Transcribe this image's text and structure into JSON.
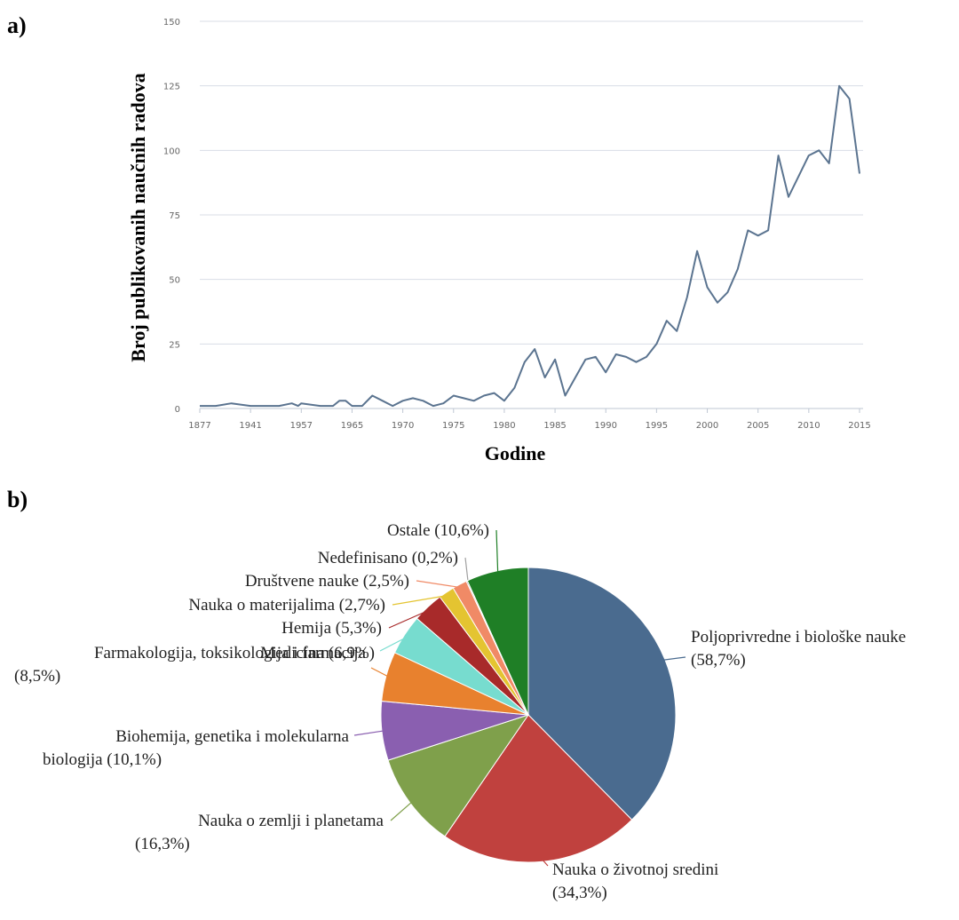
{
  "panel_a_label": "a)",
  "panel_b_label": "b)",
  "chart_data": [
    {
      "type": "line",
      "xlabel": "Godine",
      "ylabel": "Broj publikovanih naučnih radova",
      "ylim": [
        0,
        150
      ],
      "yticks": [
        "0",
        "25",
        "50",
        "75",
        "100",
        "125",
        "150"
      ],
      "xtick_labels": [
        "1877",
        "1941",
        "1957",
        "1965",
        "1970",
        "1975",
        "1980",
        "1985",
        "1990",
        "1995",
        "2000",
        "2005",
        "2010",
        "2015"
      ],
      "grid": "horizontal",
      "color": "#5b7490",
      "points": [
        [
          1877,
          1
        ],
        [
          1930,
          1
        ],
        [
          1935,
          2
        ],
        [
          1941,
          1
        ],
        [
          1945,
          1
        ],
        [
          1950,
          1
        ],
        [
          1954,
          2
        ],
        [
          1956,
          1
        ],
        [
          1957,
          2
        ],
        [
          1960,
          1
        ],
        [
          1962,
          1
        ],
        [
          1963,
          3
        ],
        [
          1964,
          3
        ],
        [
          1965,
          1
        ],
        [
          1966,
          1
        ],
        [
          1967,
          5
        ],
        [
          1968,
          3
        ],
        [
          1969,
          1
        ],
        [
          1970,
          3
        ],
        [
          1971,
          4
        ],
        [
          1972,
          3
        ],
        [
          1973,
          1
        ],
        [
          1974,
          2
        ],
        [
          1975,
          5
        ],
        [
          1976,
          4
        ],
        [
          1977,
          3
        ],
        [
          1978,
          5
        ],
        [
          1979,
          6
        ],
        [
          1980,
          3
        ],
        [
          1981,
          8
        ],
        [
          1982,
          18
        ],
        [
          1983,
          23
        ],
        [
          1984,
          12
        ],
        [
          1985,
          19
        ],
        [
          1986,
          5
        ],
        [
          1987,
          12
        ],
        [
          1988,
          19
        ],
        [
          1989,
          20
        ],
        [
          1990,
          14
        ],
        [
          1991,
          21
        ],
        [
          1992,
          20
        ],
        [
          1993,
          18
        ],
        [
          1994,
          20
        ],
        [
          1995,
          25
        ],
        [
          1996,
          34
        ],
        [
          1997,
          30
        ],
        [
          1998,
          43
        ],
        [
          1999,
          61
        ],
        [
          2000,
          47
        ],
        [
          2001,
          41
        ],
        [
          2002,
          45
        ],
        [
          2003,
          54
        ],
        [
          2004,
          69
        ],
        [
          2005,
          67
        ],
        [
          2006,
          69
        ],
        [
          2007,
          98
        ],
        [
          2008,
          82
        ],
        [
          2009,
          90
        ],
        [
          2010,
          98
        ],
        [
          2011,
          100
        ],
        [
          2012,
          95
        ],
        [
          2013,
          125
        ],
        [
          2014,
          120
        ],
        [
          2015,
          91
        ]
      ]
    },
    {
      "type": "pie",
      "slices": [
        {
          "label": "Poljoprivredne i biološke nauke",
          "pct": "(58,7%)",
          "value": 58.7,
          "color": "#4a6b8f"
        },
        {
          "label": "Nauka o životnoj sredini",
          "pct": "(34,3%)",
          "value": 34.3,
          "color": "#c0413e"
        },
        {
          "label": "Nauka o zemlji i planetama",
          "pct": "(16,3%)",
          "value": 16.3,
          "color": "#7fa04b"
        },
        {
          "label": "Biohemija, genetika i molekularna",
          "label2": "biologija (10,1%)",
          "value": 10.1,
          "color": "#8a5fb0"
        },
        {
          "label": "Farmakologija, toksikologija i farmacija",
          "pct": "(8,5%)",
          "value": 8.5,
          "color": "#e8812e"
        },
        {
          "label": "Medicina (6,9%)",
          "value": 6.9,
          "color": "#77dccf"
        },
        {
          "label": "Hemija (5,3%)",
          "value": 5.3,
          "color": "#a82a2a"
        },
        {
          "label": "Nauka o materijalima (2,7%)",
          "value": 2.7,
          "color": "#e4c431"
        },
        {
          "label": "Društvene nauke (2,5%)",
          "value": 2.5,
          "color": "#f08a66"
        },
        {
          "label": "Nedefinisano (0,2%)",
          "value": 0.2,
          "color": "#a0a0a0"
        },
        {
          "label": "Ostale (10,6%)",
          "value": 10.6,
          "color": "#1f7f26"
        }
      ]
    }
  ]
}
